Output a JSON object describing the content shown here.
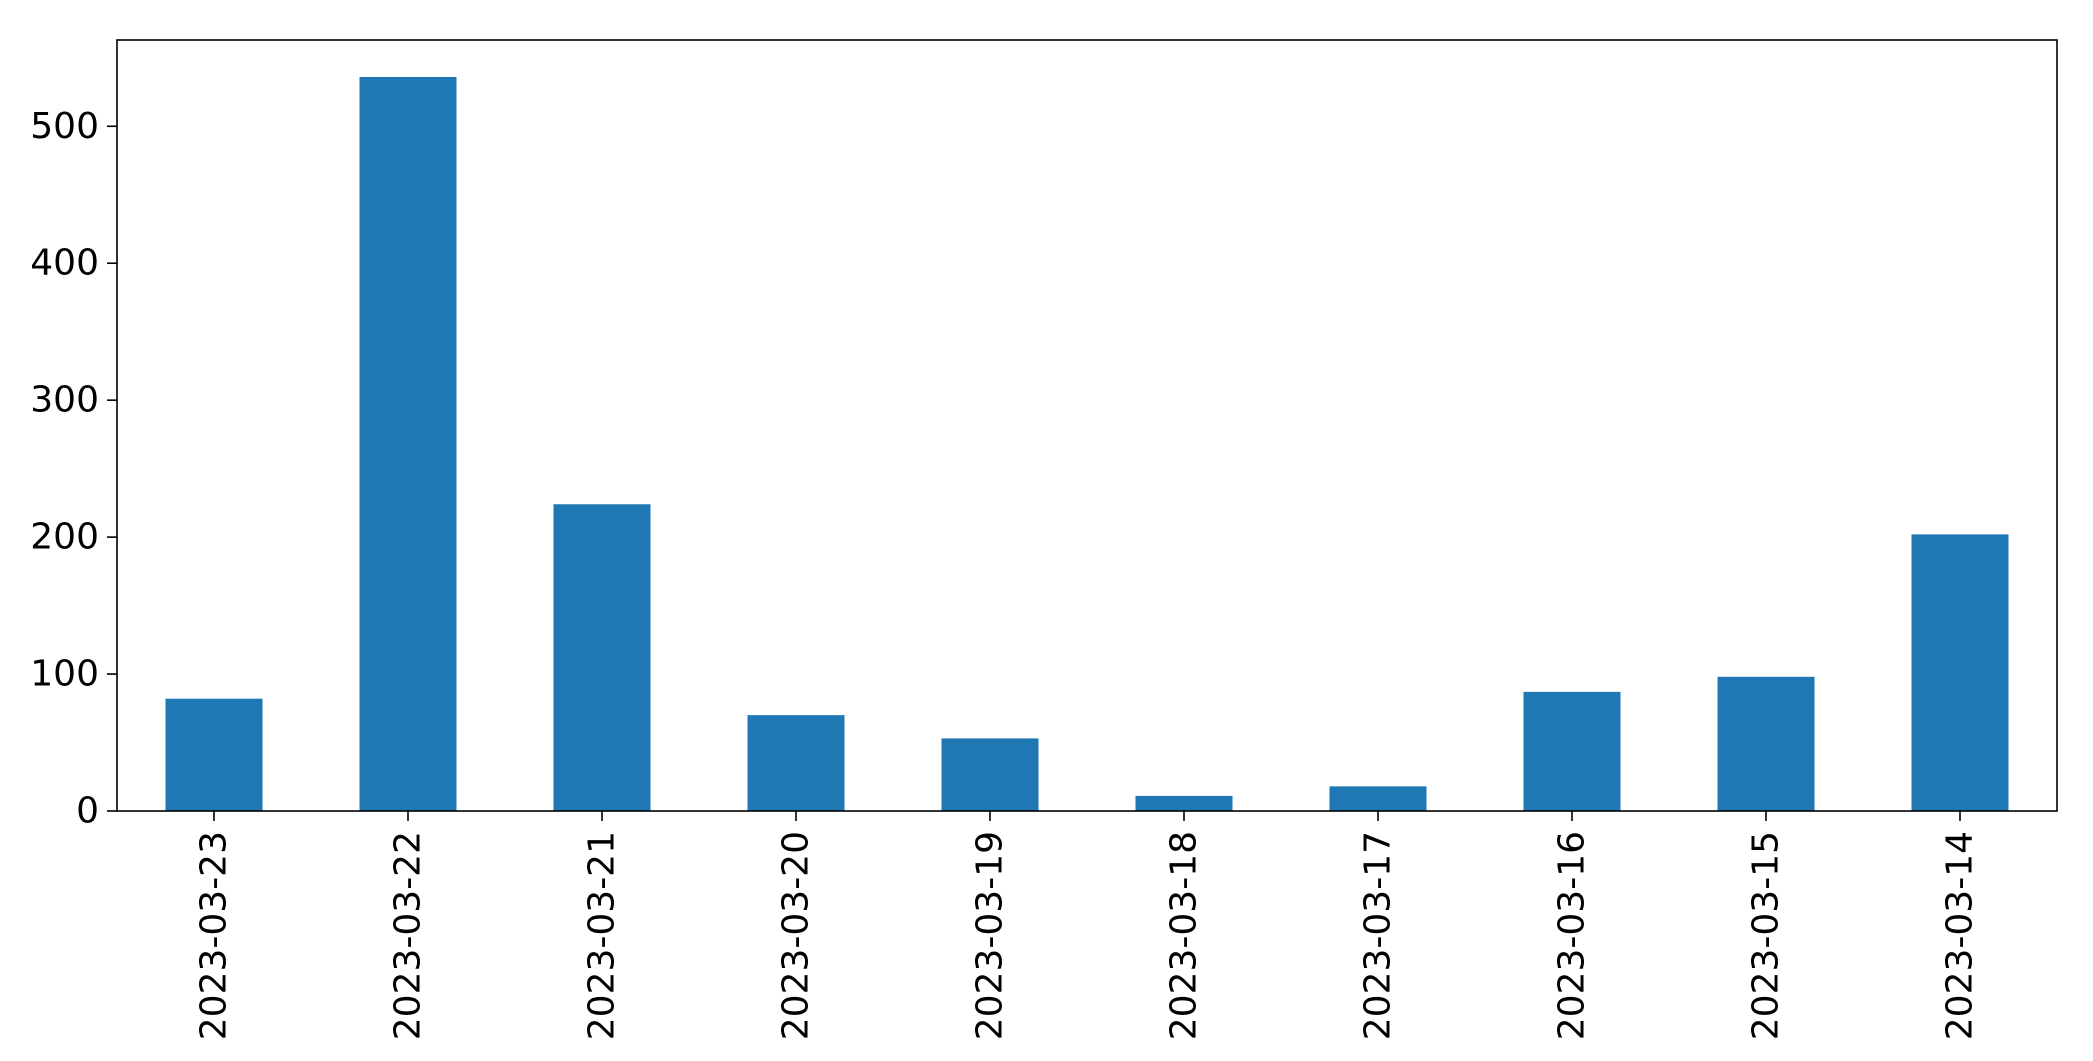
{
  "chart_data": {
    "type": "bar",
    "title": "",
    "xlabel": "",
    "ylabel": "",
    "categories": [
      "2023-03-23",
      "2023-03-22",
      "2023-03-21",
      "2023-03-20",
      "2023-03-19",
      "2023-03-18",
      "2023-03-17",
      "2023-03-16",
      "2023-03-15",
      "2023-03-14"
    ],
    "values": [
      82,
      536,
      224,
      70,
      53,
      11,
      18,
      87,
      98,
      202
    ],
    "ylim": [
      0,
      563
    ],
    "yticks": [
      0,
      100,
      200,
      300,
      400,
      500
    ],
    "grid": false,
    "legend": "none",
    "bar_color": "#1f77b4"
  }
}
